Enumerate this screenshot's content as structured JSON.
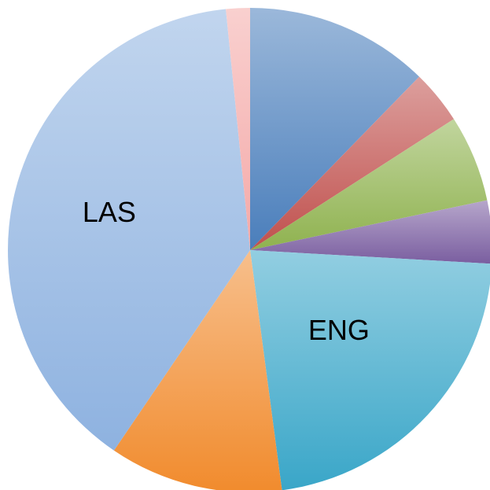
{
  "chart_data": {
    "type": "pie",
    "categories": [
      null,
      null,
      null,
      null,
      "ENG",
      null,
      "LAS",
      null
    ],
    "values": [
      12.3,
      3.6,
      5.8,
      4.2,
      22,
      11.6,
      38.9,
      1.6
    ],
    "colors": [
      "#4a7ebb",
      "#c0504d",
      "#8fb24f",
      "#7a5ea0",
      "#39a6c8",
      "#f18b2d",
      "#8eb2e0",
      "#f4a9a8"
    ]
  }
}
